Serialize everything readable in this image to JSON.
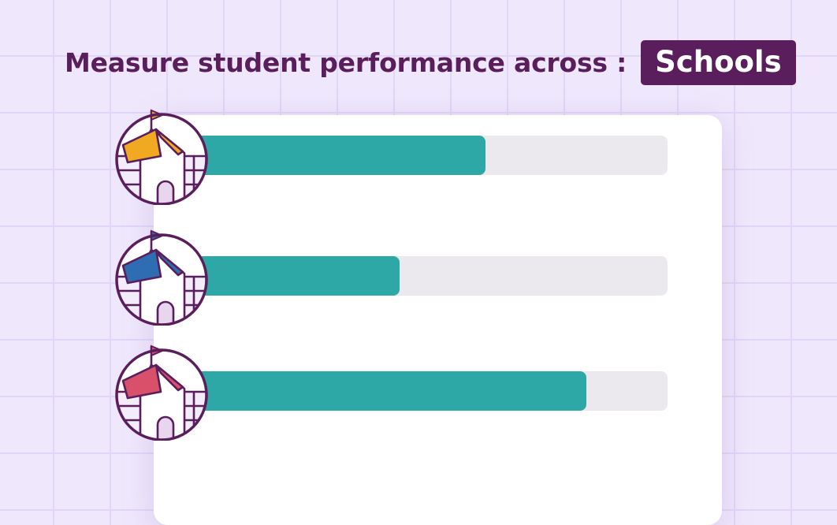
{
  "headline": {
    "text": "Measure student performance across :",
    "badge": "Schools"
  },
  "colors": {
    "background": "#efe8fc",
    "title": "#5a1e5c",
    "bar_fill": "#2ea8a6",
    "bar_track": "#ebe9ee"
  },
  "chart_data": {
    "type": "bar",
    "orientation": "horizontal",
    "categories": [
      "school-yellow",
      "school-blue",
      "school-red"
    ],
    "values": [
      62,
      44,
      83
    ],
    "xlim": [
      0,
      100
    ],
    "series": [
      {
        "values": [
          62,
          44,
          83
        ]
      }
    ],
    "icon_roof_colors": [
      "#f2a922",
      "#2f6db2",
      "#d8506a"
    ]
  }
}
